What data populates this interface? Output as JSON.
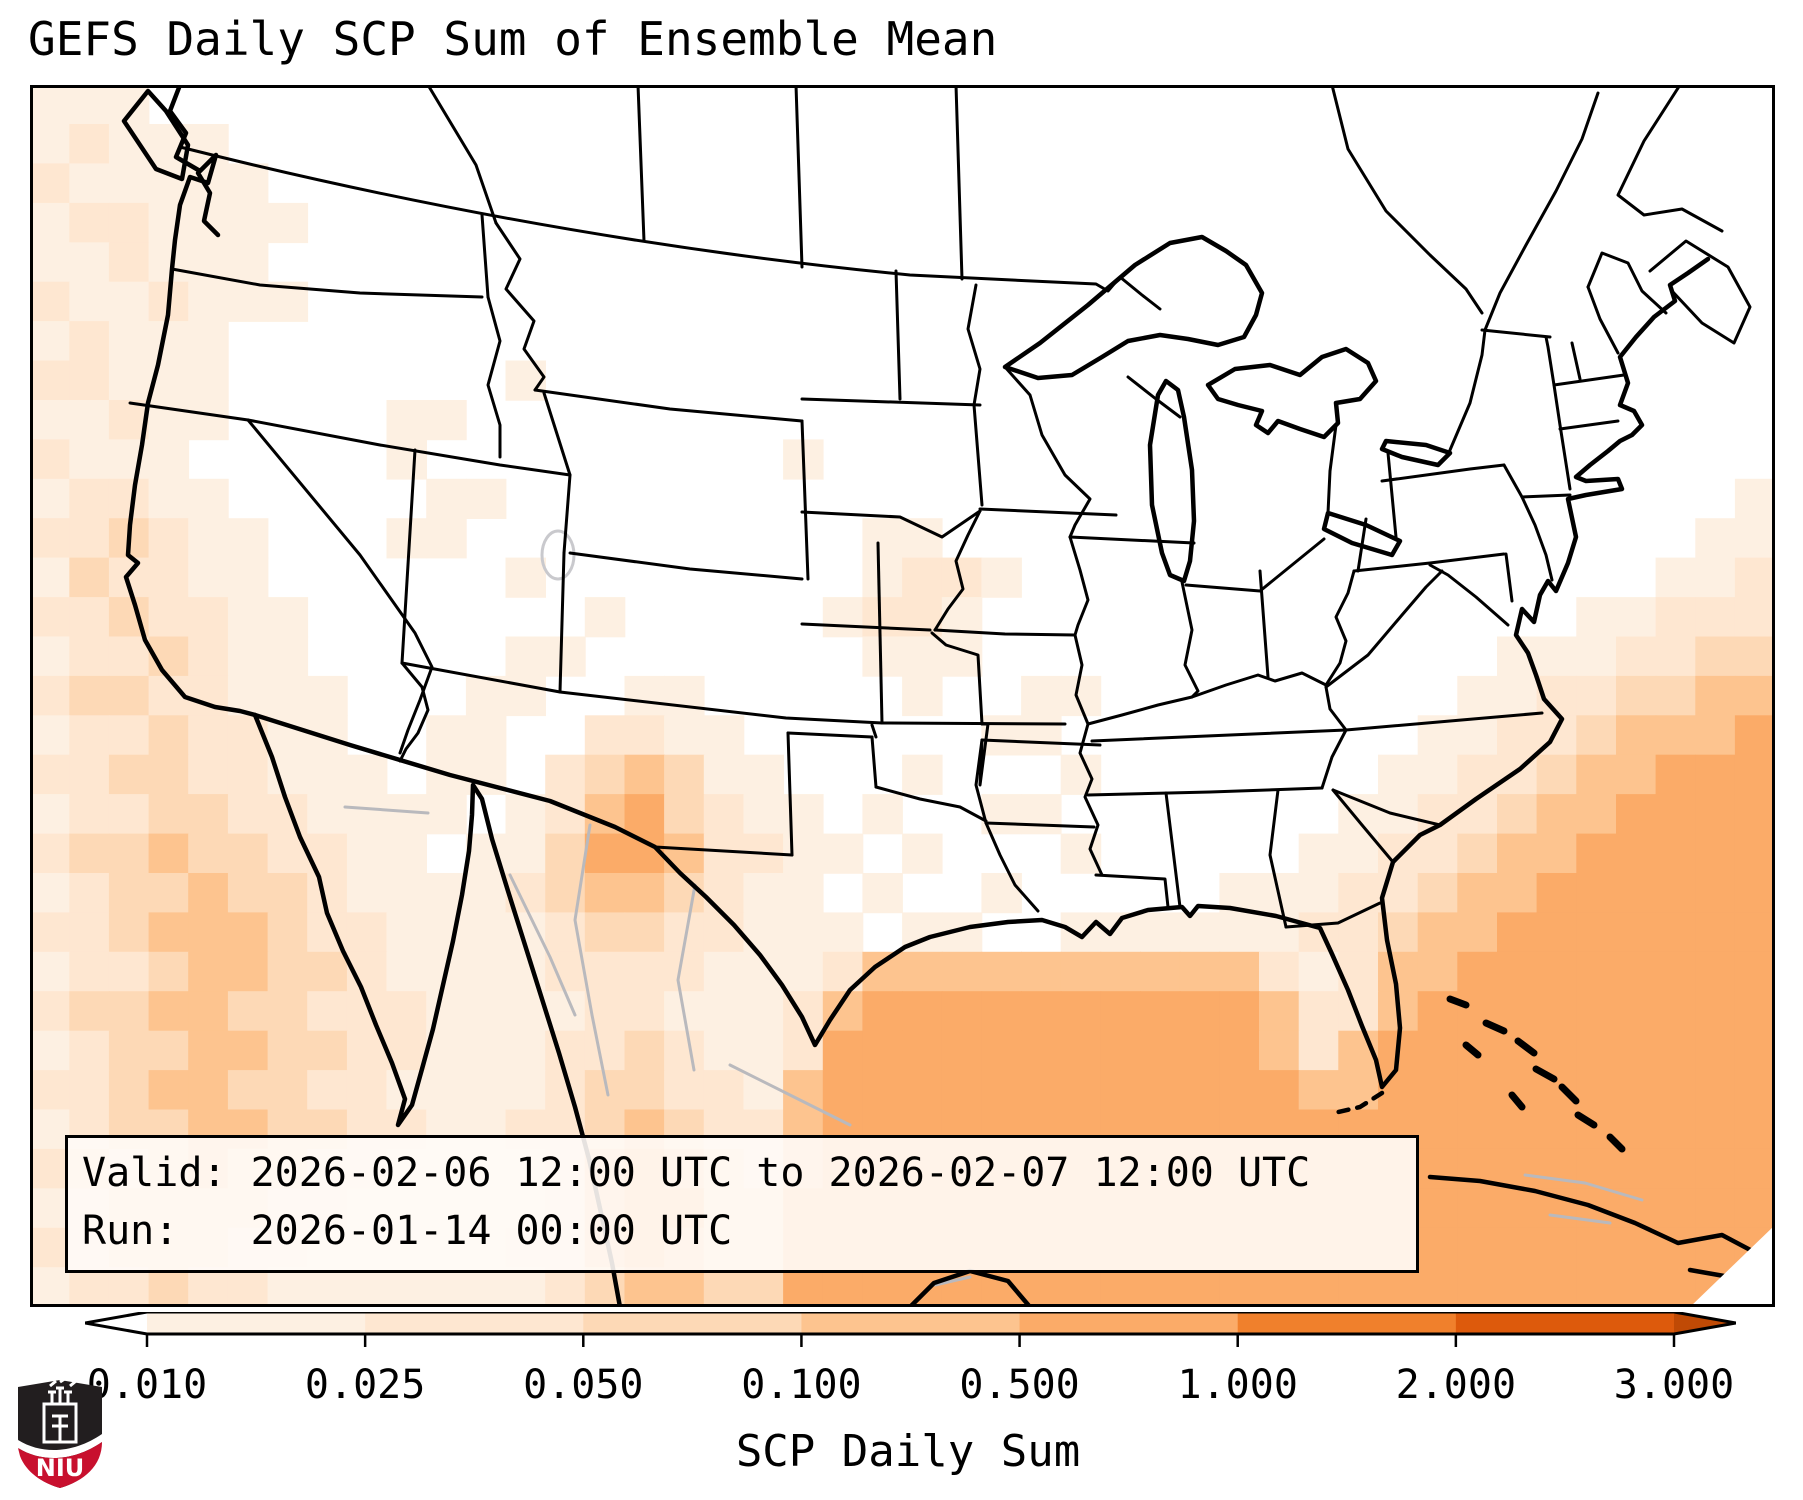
{
  "title": "GEFS Daily SCP Sum of Ensemble Mean",
  "annotation_box": {
    "valid_line": "Valid: 2026-02-06 12:00 UTC to 2026-02-07 12:00 UTC",
    "run_line": "Run:   2026-01-14 00:00 UTC"
  },
  "colorbar": {
    "label": "SCP Daily Sum",
    "tick_labels": [
      "0.010",
      "0.025",
      "0.050",
      "0.100",
      "0.500",
      "1.000",
      "2.000",
      "3.000"
    ],
    "segment_colors": [
      "#fdf0e2",
      "#fee7d1",
      "#fdd9b6",
      "#fdc48f",
      "#fbab68",
      "#f0802c",
      "#dd5a0c"
    ],
    "under_color": "#ffffff",
    "over_color": "#c04a05",
    "outline_color": "#000000"
  },
  "logo": {
    "text": "NIU",
    "shield_black": "#221e1f",
    "shield_red": "#c8102e"
  },
  "map": {
    "background": "#ffffff",
    "border_color": "#000000",
    "state_line_color": "#000000",
    "mexico_line_color": "#b9b9bd",
    "lake_fill": "#ffffff"
  },
  "chart_data": {
    "type": "heatmap",
    "title": "GEFS Daily SCP Sum of Ensemble Mean",
    "variable": "SCP Daily Sum",
    "valid": "2026-02-06 12:00 UTC to 2026-02-07 12:00 UTC",
    "run": "2026-01-14 00:00 UTC",
    "bin_edges": [
      0.01,
      0.025,
      0.05,
      0.1,
      0.5,
      1.0,
      2.0,
      3.0
    ],
    "bin_colors": [
      "#ffffff",
      "#fdf0e2",
      "#fee7d1",
      "#fdd9b6",
      "#fdc48f",
      "#fbab68",
      "#f0802c",
      "#dd5a0c",
      "#c04a05"
    ],
    "legend_note": "cell chars 0-8 index bin_colors; 0 = below 0.010 (white), 8 = above 3.000",
    "grid_cols": 44,
    "grid_rows": 31,
    "grid": [
      "11100000000000000000000000000000000000000000",
      "12111000000000000000000000000000000000000000",
      "21111100000000000000000000000000000000000000",
      "12211110000000000000000000000000000000000000",
      "11211100000000000000000000000000000000000000",
      "21121110000000000000000000000000000000000000",
      "12111000000000000000000000000000000000000000",
      "22111000000010000000000000000000000000000000",
      "11211000011000000000000000000000000000000000",
      "21110000010000000001000000000000000000000000",
      "12211000001100000000000000000000000000000001",
      "22321100011000000000011000000000000000000011",
      "13221100000010000000012210000000000000000112",
      "22322110000000100000122100000000000000011222",
      "12232110000011000000011100000000000001112233",
      "23322111000110011000001001100000000011223344",
      "12232211001100221100000011000000000112234445",
      "22332211101102343110001000100000001122344555",
      "12233221111012453211010011000000011223445555",
      "23343322110113554221101000100000112234455555",
      "12334332111123443211010010000011122344555555",
      "22344432211112332211101100111111223445555555",
      "12234433211112222111244444444442124455555555",
      "23344332221111221112455555555554224555555555",
      "12334433221112232112555555555554245555555555",
      "22344332211112332214555555555555445555555555",
      "12334433221122343224555555555555555555555555",
      "23234332211112454324555555555555555555555555",
      "12333322111112455335555555555555555555555555",
      "22333221111122454335555555555555555555555555",
      "12232211111112344335555555555555555555555555"
    ]
  }
}
